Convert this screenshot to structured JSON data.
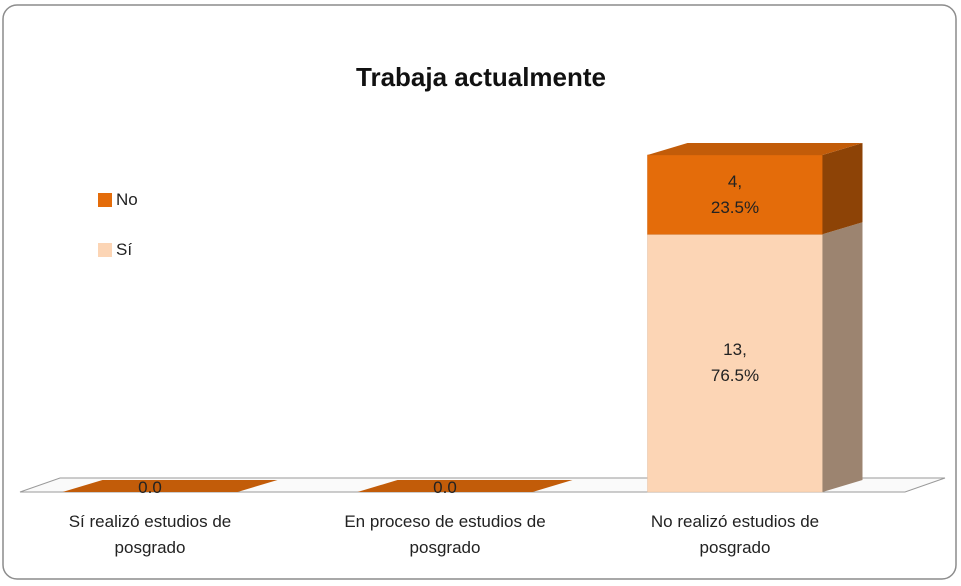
{
  "chart_data": {
    "type": "bar3d_stacked",
    "title": "Trabaja actualmente",
    "categories": [
      "Sí realizó estudios de posgrado",
      "En proceso de estudios de posgrado",
      "No realizó estudios de posgrado"
    ],
    "series": [
      {
        "name": "Sí",
        "color": "#fcd5b5",
        "values": [
          0,
          0,
          13
        ],
        "value_labels": [
          null,
          null,
          "13,\n76.5%"
        ]
      },
      {
        "name": "No",
        "color": "#e46c0a",
        "values": [
          0,
          0,
          4
        ],
        "value_labels": [
          "0.0",
          "0.0",
          "4,\n23.5%"
        ]
      }
    ],
    "legend": "left"
  }
}
